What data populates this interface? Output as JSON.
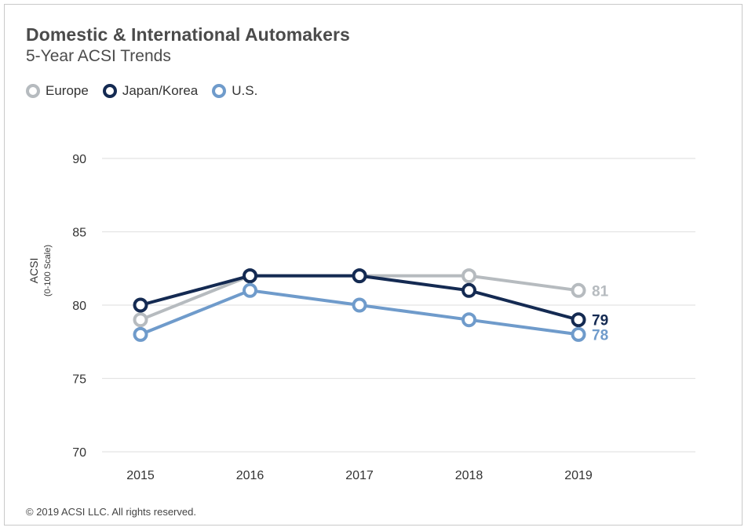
{
  "chart_data": {
    "type": "line",
    "title": "Domestic & International Automakers",
    "subtitle": "5-Year ACSI Trends",
    "ylabel": "ACSI",
    "ylabel_sub": "(0-100 Scale)",
    "x": [
      "2015",
      "2016",
      "2017",
      "2018",
      "2019"
    ],
    "ylim": [
      70,
      90
    ],
    "yticks": [
      70,
      75,
      80,
      85,
      90
    ],
    "grid": true,
    "legend_position": "top-left",
    "series": [
      {
        "name": "Europe",
        "color": "#b6bbbf",
        "values": [
          79,
          82,
          82,
          82,
          81
        ],
        "end_label": "81"
      },
      {
        "name": "Japan/Korea",
        "color": "#142a52",
        "values": [
          80,
          82,
          82,
          81,
          79
        ],
        "end_label": "79"
      },
      {
        "name": "U.S.",
        "color": "#6f9bcb",
        "values": [
          78,
          81,
          80,
          79,
          78
        ],
        "end_label": "78"
      }
    ]
  },
  "footer": "© 2019 ACSI LLC. All rights reserved."
}
